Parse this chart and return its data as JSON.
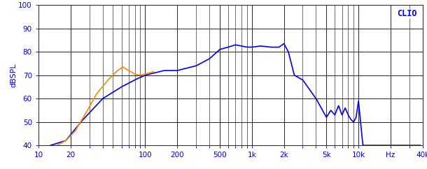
{
  "ylabel": "dBSPL",
  "clio_label": "CLIO",
  "xmin": 10,
  "xmax": 40000,
  "ymin": 40,
  "ymax": 100,
  "yticks": [
    40,
    50,
    60,
    70,
    80,
    90,
    100
  ],
  "background_color": "#ffffff",
  "grid_color": "#000000",
  "blue_color": "#0000ee",
  "orange_color": "#ff8800",
  "line_width": 1.2,
  "tick_label_color": "#0000cc",
  "ylabel_color": "#0000cc"
}
